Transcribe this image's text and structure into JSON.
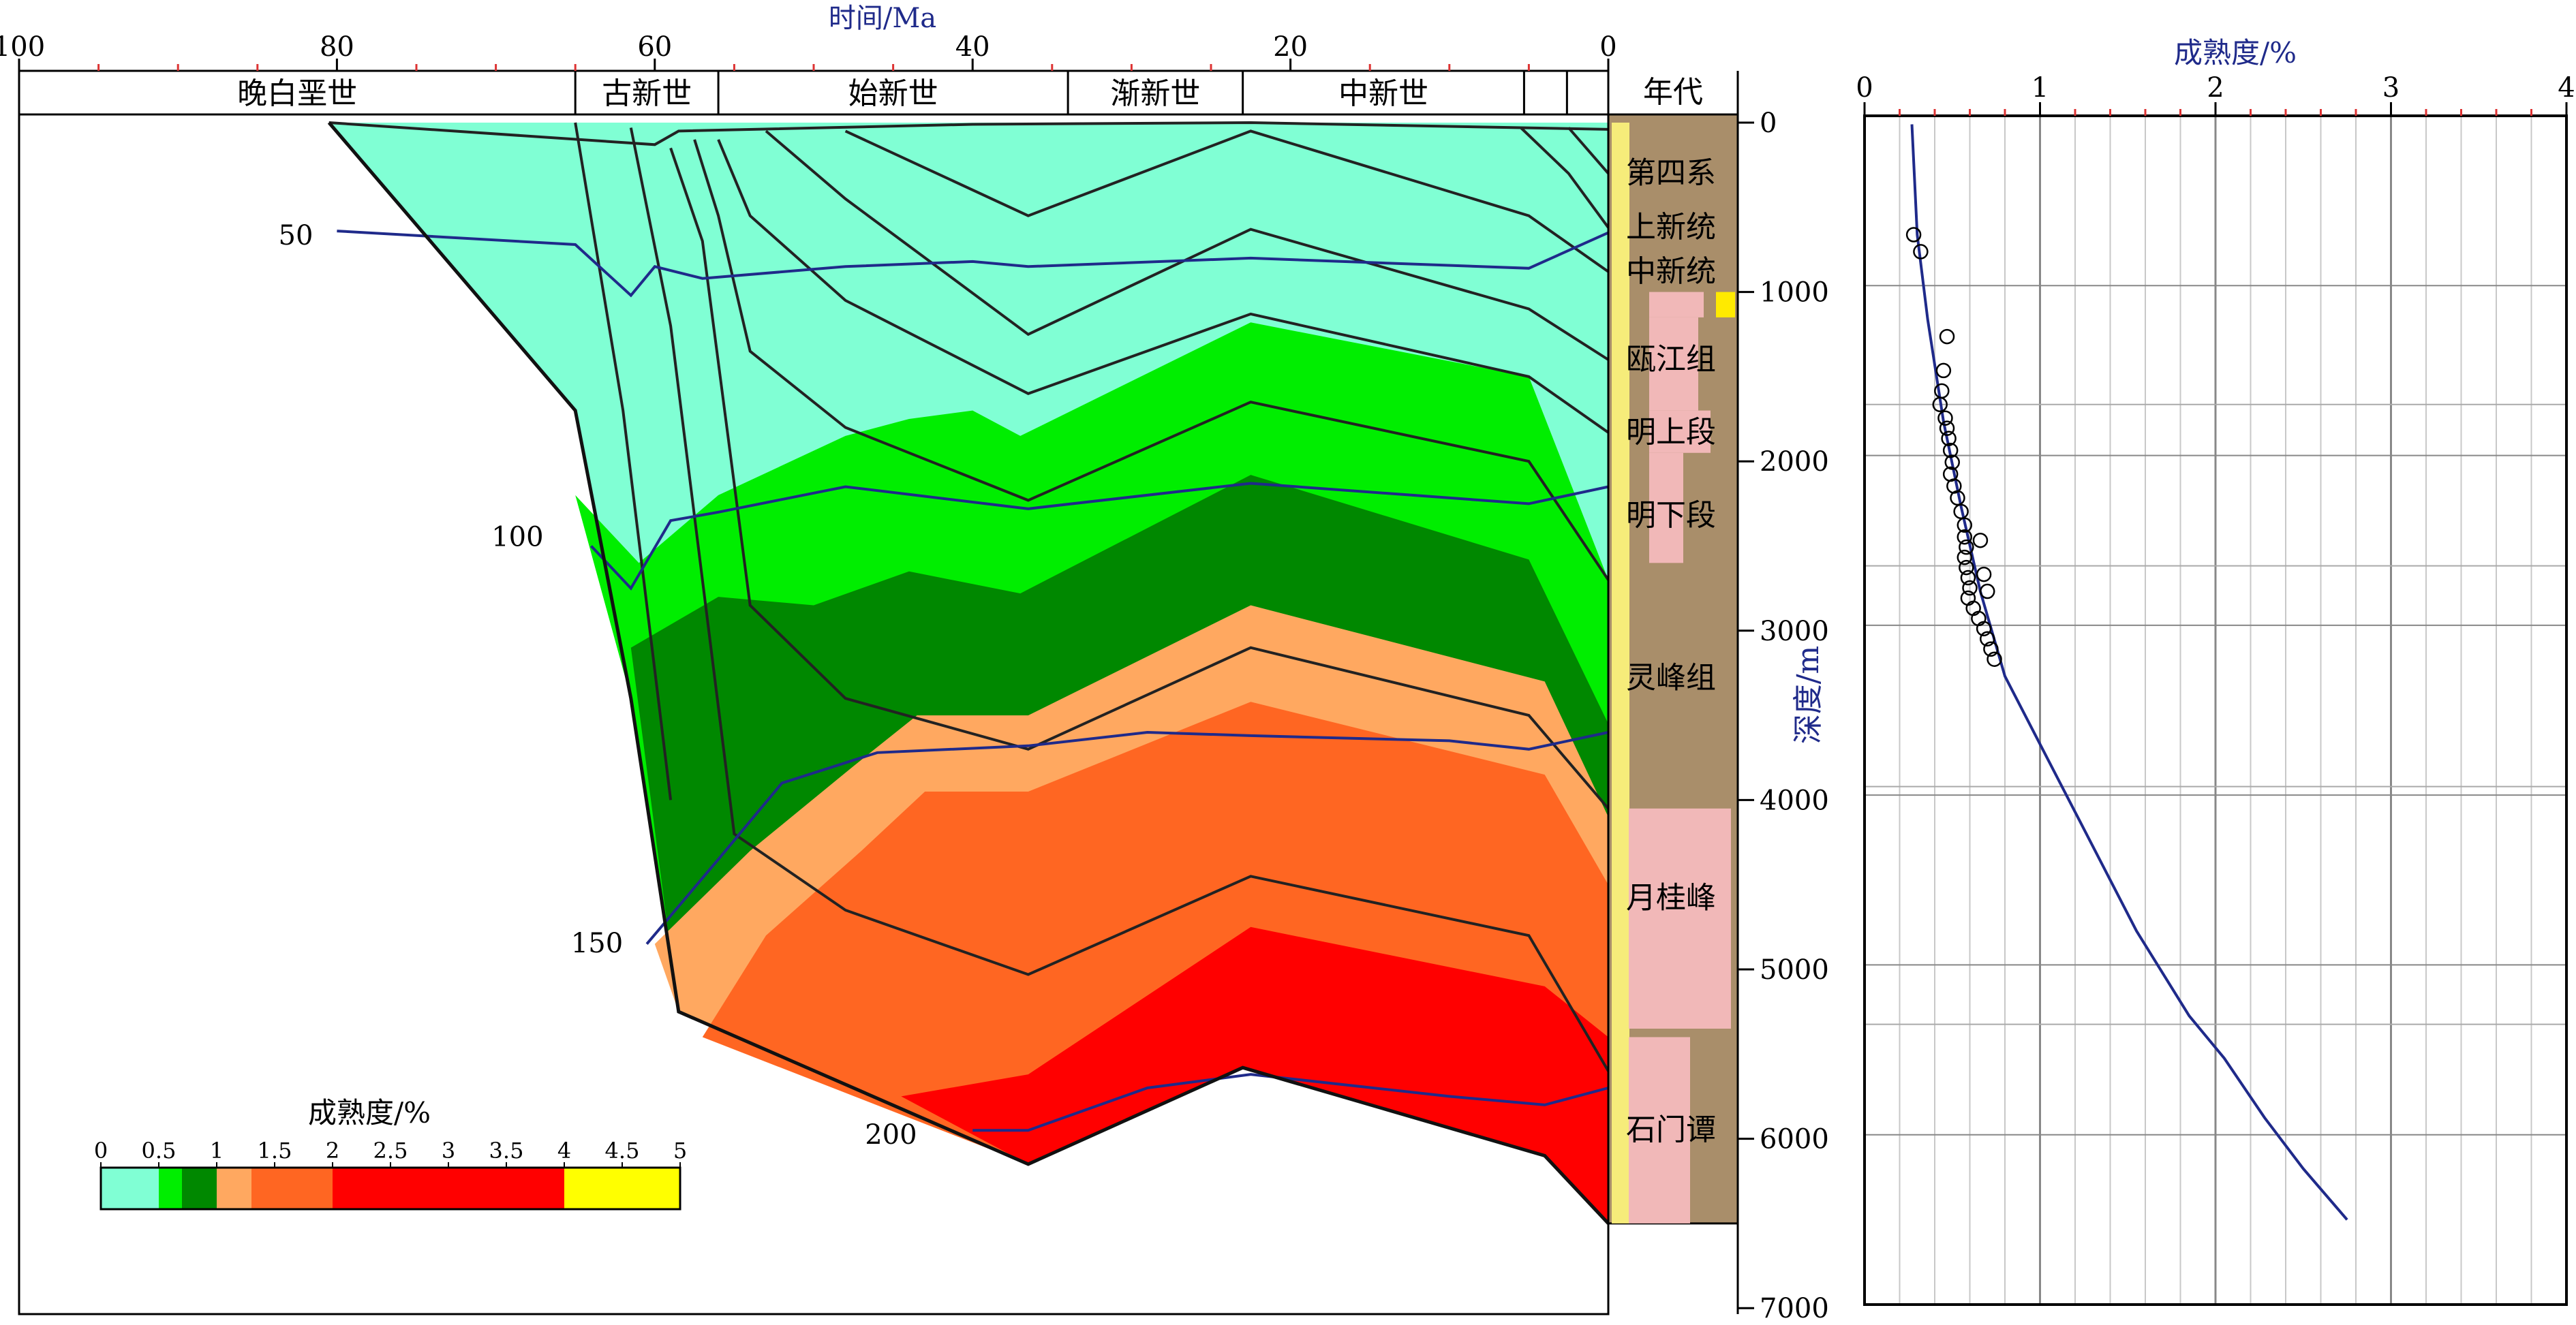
{
  "chart_data": [
    {
      "type": "area",
      "subtype": "burial-history-thermal-maturity",
      "title": "",
      "xlabel": "时间/Ma",
      "ylabel": "深度/m",
      "xlim": [
        100,
        0
      ],
      "ylim": [
        0,
        7000
      ],
      "x_ticks": [
        "100",
        "80",
        "60",
        "40",
        "20",
        "0"
      ],
      "y_ticks": [
        "0",
        "1000",
        "2000",
        "3000",
        "4000",
        "5000",
        "6000",
        "7000"
      ],
      "epochs": [
        "晚白垩世",
        "古新世",
        "始新世",
        "渐新世",
        "中新世"
      ],
      "strat_header": "年代",
      "strat_units": [
        "第四系",
        "上新统",
        "中新统",
        "瓯江组",
        "明上段",
        "明下段",
        "灵峰组",
        "月桂峰",
        "石门谭"
      ],
      "strat_depths": [
        {
          "label": "第四系",
          "d": 300
        },
        {
          "label": "上新统",
          "d": 620
        },
        {
          "label": "中新统",
          "d": 880
        },
        {
          "label": "瓯江组",
          "d": 1400
        },
        {
          "label": "明上段",
          "d": 1830
        },
        {
          "label": "明下段",
          "d": 2320
        },
        {
          "label": "灵峰组",
          "d": 3280
        },
        {
          "label": "月桂峰",
          "d": 4580
        },
        {
          "label": "石门谭",
          "d": 5950
        }
      ],
      "temp_labels": [
        {
          "label": "50",
          "t": 81.5,
          "d": 720
        },
        {
          "label": "100",
          "t": 67,
          "d": 2500
        },
        {
          "label": "150",
          "t": 62,
          "d": 4900
        },
        {
          "label": "200",
          "t": 43.5,
          "d": 6030
        }
      ],
      "legend_title": "成熟度/%",
      "legend_ticks": [
        "0",
        "0.5",
        "1",
        "1.5",
        "2",
        "2.5",
        "3",
        "3.5",
        "4",
        "4.5",
        "5"
      ],
      "ro_classes": [
        {
          "range": [
            0,
            0.5
          ],
          "color": "#80ffd4"
        },
        {
          "range": [
            0.5,
            0.7
          ],
          "color": "#00ee00"
        },
        {
          "range": [
            0.7,
            1.0
          ],
          "color": "#008800"
        },
        {
          "range": [
            1.0,
            1.3
          ],
          "color": "#ffa860"
        },
        {
          "range": [
            1.3,
            2.0
          ],
          "color": "#ff6622"
        },
        {
          "range": [
            2.0,
            4.0
          ],
          "color": "#ff0000"
        },
        {
          "range": [
            4.0,
            5.0
          ],
          "color": "#ffff00"
        }
      ],
      "basement": [
        {
          "t": 80.5,
          "d": 0
        },
        {
          "t": 65,
          "d": 1700
        },
        {
          "t": 61.5,
          "d": 3400
        },
        {
          "t": 58.5,
          "d": 5250
        },
        {
          "t": 36.5,
          "d": 6150
        },
        {
          "t": 23,
          "d": 5580
        },
        {
          "t": 4,
          "d": 6100
        },
        {
          "t": 0,
          "d": 6500
        }
      ],
      "maturity_bands": [
        {
          "ro": 0.5,
          "points": [
            {
              "t": 65,
              "d": 2200
            },
            {
              "t": 61,
              "d": 2600
            },
            {
              "t": 56,
              "d": 2200
            },
            {
              "t": 48,
              "d": 1850
            },
            {
              "t": 44,
              "d": 1750
            },
            {
              "t": 40,
              "d": 1700
            },
            {
              "t": 37,
              "d": 1850
            },
            {
              "t": 22.5,
              "d": 1180
            },
            {
              "t": 5,
              "d": 1500
            },
            {
              "t": 0,
              "d": 2700
            }
          ]
        },
        {
          "ro": 0.7,
          "points": [
            {
              "t": 61.5,
              "d": 3100
            },
            {
              "t": 56,
              "d": 2800
            },
            {
              "t": 50,
              "d": 2850
            },
            {
              "t": 44,
              "d": 2650
            },
            {
              "t": 37,
              "d": 2780
            },
            {
              "t": 22.5,
              "d": 2080
            },
            {
              "t": 5,
              "d": 2580
            },
            {
              "t": 0,
              "d": 3550
            }
          ]
        },
        {
          "ro": 1.0,
          "points": [
            {
              "t": 60,
              "d": 4850
            },
            {
              "t": 54,
              "d": 4300
            },
            {
              "t": 47.5,
              "d": 3800
            },
            {
              "t": 43.5,
              "d": 3500
            },
            {
              "t": 36.5,
              "d": 3500
            },
            {
              "t": 22.5,
              "d": 2850
            },
            {
              "t": 4,
              "d": 3300
            },
            {
              "t": 0,
              "d": 4100
            }
          ]
        },
        {
          "ro": 1.3,
          "points": [
            {
              "t": 57,
              "d": 5400
            },
            {
              "t": 53,
              "d": 4800
            },
            {
              "t": 47,
              "d": 4300
            },
            {
              "t": 43,
              "d": 3950
            },
            {
              "t": 36.5,
              "d": 3950
            },
            {
              "t": 22.5,
              "d": 3420
            },
            {
              "t": 4,
              "d": 3850
            },
            {
              "t": 0,
              "d": 4500
            }
          ]
        },
        {
          "ro": 2.0,
          "points": [
            {
              "t": 44.5,
              "d": 5750
            },
            {
              "t": 36.5,
              "d": 5620
            },
            {
              "t": 22.5,
              "d": 4750
            },
            {
              "t": 4,
              "d": 5100
            },
            {
              "t": 0,
              "d": 5400
            }
          ]
        }
      ],
      "burial_lines": [
        {
          "points": [
            {
              "t": 65,
              "d": 0
            },
            {
              "t": 62,
              "d": 1700
            },
            {
              "t": 59,
              "d": 4000
            }
          ]
        },
        {
          "points": [
            {
              "t": 61.5,
              "d": 30
            },
            {
              "t": 59,
              "d": 1200
            },
            {
              "t": 55,
              "d": 4200
            },
            {
              "t": 48,
              "d": 4650
            },
            {
              "t": 36.5,
              "d": 5030
            },
            {
              "t": 22.5,
              "d": 4450
            },
            {
              "t": 5,
              "d": 4800
            },
            {
              "t": 0,
              "d": 5600
            }
          ]
        },
        {
          "points": [
            {
              "t": 59,
              "d": 150
            },
            {
              "t": 57,
              "d": 700
            },
            {
              "t": 54,
              "d": 2850
            },
            {
              "t": 48,
              "d": 3400
            },
            {
              "t": 36.5,
              "d": 3700
            },
            {
              "t": 22.5,
              "d": 3100
            },
            {
              "t": 5,
              "d": 3500
            },
            {
              "t": 0,
              "d": 4050
            }
          ]
        },
        {
          "points": [
            {
              "t": 57.5,
              "d": 100
            },
            {
              "t": 56,
              "d": 550
            },
            {
              "t": 54,
              "d": 1350
            },
            {
              "t": 48,
              "d": 1800
            },
            {
              "t": 36.5,
              "d": 2230
            },
            {
              "t": 22.5,
              "d": 1650
            },
            {
              "t": 5,
              "d": 2000
            },
            {
              "t": 0,
              "d": 2700
            }
          ]
        },
        {
          "points": [
            {
              "t": 56,
              "d": 100
            },
            {
              "t": 54,
              "d": 550
            },
            {
              "t": 48,
              "d": 1050
            },
            {
              "t": 36.5,
              "d": 1600
            },
            {
              "t": 22.5,
              "d": 1130
            },
            {
              "t": 5,
              "d": 1500
            },
            {
              "t": 0,
              "d": 1830
            }
          ]
        },
        {
          "points": [
            {
              "t": 53,
              "d": 50
            },
            {
              "t": 48,
              "d": 450
            },
            {
              "t": 36.5,
              "d": 1250
            },
            {
              "t": 22.5,
              "d": 630
            },
            {
              "t": 5,
              "d": 1100
            },
            {
              "t": 0,
              "d": 1400
            }
          ]
        },
        {
          "points": [
            {
              "t": 48,
              "d": 50
            },
            {
              "t": 36.5,
              "d": 550
            },
            {
              "t": 22.5,
              "d": 50
            },
            {
              "t": 5,
              "d": 550
            },
            {
              "t": 0,
              "d": 880
            }
          ]
        },
        {
          "points": [
            {
              "t": 5.5,
              "d": 30
            },
            {
              "t": 2.5,
              "d": 300
            },
            {
              "t": 0,
              "d": 620
            }
          ]
        },
        {
          "points": [
            {
              "t": 2.5,
              "d": 30
            },
            {
              "t": 0,
              "d": 300
            }
          ]
        }
      ],
      "isotherms": [
        {
          "temp": "50",
          "points": [
            {
              "t": 80,
              "d": 640
            },
            {
              "t": 65,
              "d": 720
            },
            {
              "t": 61.5,
              "d": 1020
            },
            {
              "t": 60,
              "d": 850
            },
            {
              "t": 57,
              "d": 920
            },
            {
              "t": 48,
              "d": 850
            },
            {
              "t": 40,
              "d": 820
            },
            {
              "t": 36.5,
              "d": 850
            },
            {
              "t": 22.5,
              "d": 800
            },
            {
              "t": 5,
              "d": 860
            },
            {
              "t": 0,
              "d": 650
            }
          ]
        },
        {
          "temp": "100",
          "points": [
            {
              "t": 64,
              "d": 2500
            },
            {
              "t": 61.5,
              "d": 2750
            },
            {
              "t": 59,
              "d": 2350
            },
            {
              "t": 56,
              "d": 2300
            },
            {
              "t": 48,
              "d": 2150
            },
            {
              "t": 36.5,
              "d": 2280
            },
            {
              "t": 22.5,
              "d": 2130
            },
            {
              "t": 5,
              "d": 2250
            },
            {
              "t": 0,
              "d": 2150
            }
          ]
        },
        {
          "temp": "150",
          "points": [
            {
              "t": 60.5,
              "d": 4850
            },
            {
              "t": 56,
              "d": 4350
            },
            {
              "t": 52,
              "d": 3900
            },
            {
              "t": 46,
              "d": 3720
            },
            {
              "t": 36.5,
              "d": 3680
            },
            {
              "t": 29,
              "d": 3600
            },
            {
              "t": 22.5,
              "d": 3620
            },
            {
              "t": 10,
              "d": 3650
            },
            {
              "t": 5,
              "d": 3700
            },
            {
              "t": 0,
              "d": 3600
            }
          ]
        },
        {
          "temp": "200",
          "points": [
            {
              "t": 40,
              "d": 5950
            },
            {
              "t": 36.5,
              "d": 5950
            },
            {
              "t": 29,
              "d": 5700
            },
            {
              "t": 22.5,
              "d": 5620
            },
            {
              "t": 10,
              "d": 5750
            },
            {
              "t": 4,
              "d": 5800
            },
            {
              "t": 0,
              "d": 5700
            }
          ]
        }
      ]
    },
    {
      "type": "scatter",
      "title": "",
      "xlabel": "成熟度/%",
      "ylabel": "",
      "xlim": [
        0,
        4
      ],
      "ylim": [
        0,
        7000
      ],
      "x_ticks": [
        "0",
        "1",
        "2",
        "3",
        "4"
      ],
      "observed": [
        {
          "x": 0.28,
          "y": 700
        },
        {
          "x": 0.32,
          "y": 800
        },
        {
          "x": 0.47,
          "y": 1300
        },
        {
          "x": 0.45,
          "y": 1500
        },
        {
          "x": 0.44,
          "y": 1620
        },
        {
          "x": 0.43,
          "y": 1700
        },
        {
          "x": 0.46,
          "y": 1780
        },
        {
          "x": 0.47,
          "y": 1840
        },
        {
          "x": 0.48,
          "y": 1900
        },
        {
          "x": 0.49,
          "y": 1970
        },
        {
          "x": 0.5,
          "y": 2040
        },
        {
          "x": 0.49,
          "y": 2110
        },
        {
          "x": 0.51,
          "y": 2180
        },
        {
          "x": 0.53,
          "y": 2250
        },
        {
          "x": 0.55,
          "y": 2330
        },
        {
          "x": 0.57,
          "y": 2410
        },
        {
          "x": 0.57,
          "y": 2480
        },
        {
          "x": 0.58,
          "y": 2540
        },
        {
          "x": 0.57,
          "y": 2600
        },
        {
          "x": 0.58,
          "y": 2660
        },
        {
          "x": 0.59,
          "y": 2720
        },
        {
          "x": 0.6,
          "y": 2780
        },
        {
          "x": 0.59,
          "y": 2840
        },
        {
          "x": 0.62,
          "y": 2900
        },
        {
          "x": 0.65,
          "y": 2960
        },
        {
          "x": 0.68,
          "y": 3020
        },
        {
          "x": 0.7,
          "y": 3080
        },
        {
          "x": 0.72,
          "y": 3140
        },
        {
          "x": 0.74,
          "y": 3200
        },
        {
          "x": 0.66,
          "y": 2500
        },
        {
          "x": 0.68,
          "y": 2700
        },
        {
          "x": 0.7,
          "y": 2800
        }
      ],
      "modeled": [
        {
          "x": 0.27,
          "y": 50
        },
        {
          "x": 0.3,
          "y": 700
        },
        {
          "x": 0.36,
          "y": 1200
        },
        {
          "x": 0.45,
          "y": 1800
        },
        {
          "x": 0.55,
          "y": 2300
        },
        {
          "x": 0.66,
          "y": 2800
        },
        {
          "x": 0.8,
          "y": 3300
        },
        {
          "x": 1.05,
          "y": 3800
        },
        {
          "x": 1.3,
          "y": 4300
        },
        {
          "x": 1.55,
          "y": 4800
        },
        {
          "x": 1.85,
          "y": 5300
        },
        {
          "x": 2.05,
          "y": 5550
        },
        {
          "x": 2.28,
          "y": 5900
        },
        {
          "x": 2.5,
          "y": 6200
        },
        {
          "x": 2.75,
          "y": 6500
        }
      ]
    }
  ]
}
